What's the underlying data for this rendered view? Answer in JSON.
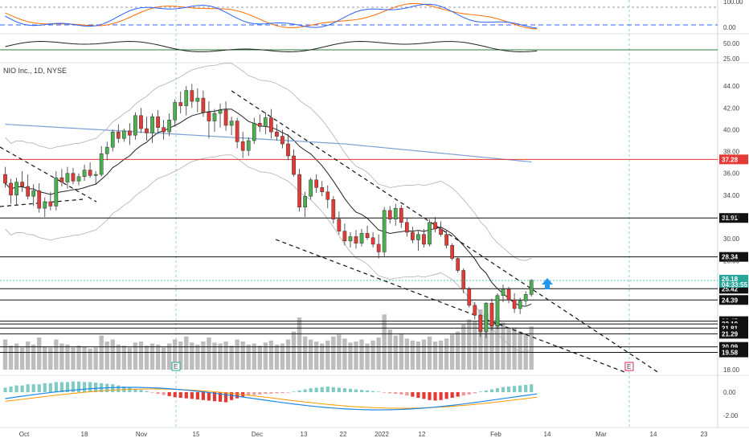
{
  "chart_data": {
    "type": "candlestick",
    "symbol": "NIO Inc., 1D, NYSE",
    "candles": [
      [
        35.9,
        36.6,
        34.7,
        35.1
      ],
      [
        35.1,
        35.5,
        33.2,
        34.0
      ],
      [
        34.0,
        35.6,
        33.1,
        35.2
      ],
      [
        35.2,
        36.2,
        34.3,
        34.8
      ],
      [
        34.8,
        35.9,
        33.6,
        33.9
      ],
      [
        33.9,
        35.0,
        33.0,
        34.4
      ],
      [
        34.4,
        35.1,
        32.4,
        32.8
      ],
      [
        32.8,
        33.8,
        32.0,
        33.4
      ],
      [
        33.4,
        34.3,
        32.6,
        33.0
      ],
      [
        33.0,
        36.2,
        32.6,
        35.6
      ],
      [
        35.6,
        36.4,
        34.8,
        35.2
      ],
      [
        35.2,
        36.6,
        34.6,
        36.0
      ],
      [
        36.0,
        36.5,
        35.0,
        35.3
      ],
      [
        35.3,
        36.0,
        34.9,
        35.7
      ],
      [
        35.7,
        36.8,
        35.3,
        36.3
      ],
      [
        36.3,
        37.0,
        35.6,
        35.8
      ],
      [
        35.8,
        36.2,
        35.0,
        35.9
      ],
      [
        35.9,
        38.5,
        35.7,
        37.8
      ],
      [
        37.8,
        38.9,
        37.2,
        38.4
      ],
      [
        38.4,
        40.0,
        38.0,
        39.8
      ],
      [
        39.8,
        40.5,
        38.8,
        39.2
      ],
      [
        39.2,
        40.1,
        38.9,
        39.9
      ],
      [
        39.9,
        40.6,
        38.6,
        39.5
      ],
      [
        39.5,
        41.6,
        39.1,
        41.3
      ],
      [
        41.3,
        42.0,
        39.7,
        40.1
      ],
      [
        40.1,
        41.2,
        39.0,
        39.7
      ],
      [
        39.7,
        41.5,
        38.8,
        41.2
      ],
      [
        41.2,
        41.8,
        39.6,
        40.2
      ],
      [
        40.2,
        40.9,
        39.1,
        39.8
      ],
      [
        39.8,
        41.5,
        39.4,
        40.9
      ],
      [
        40.9,
        42.8,
        40.3,
        42.5
      ],
      [
        42.5,
        43.5,
        41.5,
        42.2
      ],
      [
        42.2,
        44.0,
        41.3,
        43.6
      ],
      [
        43.6,
        44.2,
        42.0,
        42.6
      ],
      [
        42.6,
        43.8,
        41.6,
        42.9
      ],
      [
        42.9,
        43.6,
        41.2,
        41.6
      ],
      [
        41.6,
        42.6,
        39.2,
        40.8
      ],
      [
        40.8,
        41.9,
        39.8,
        41.5
      ],
      [
        41.5,
        42.4,
        40.2,
        41.8
      ],
      [
        41.8,
        42.6,
        39.9,
        40.4
      ],
      [
        40.4,
        41.2,
        39.5,
        40.8
      ],
      [
        40.8,
        41.1,
        38.3,
        38.9
      ],
      [
        38.9,
        39.8,
        37.4,
        38.1
      ],
      [
        38.1,
        39.3,
        37.6,
        39.0
      ],
      [
        39.0,
        41.1,
        38.7,
        40.6
      ],
      [
        40.6,
        41.4,
        39.8,
        40.3
      ],
      [
        40.3,
        41.6,
        39.6,
        41.1
      ],
      [
        41.1,
        41.9,
        39.2,
        39.8
      ],
      [
        39.8,
        40.5,
        39.0,
        39.4
      ],
      [
        39.4,
        40.0,
        38.3,
        38.7
      ],
      [
        38.7,
        39.6,
        37.2,
        37.6
      ],
      [
        37.6,
        38.2,
        35.7,
        35.9
      ],
      [
        35.9,
        36.4,
        32.5,
        32.9
      ],
      [
        32.9,
        34.3,
        32.0,
        33.9
      ],
      [
        33.9,
        35.6,
        33.6,
        35.4
      ],
      [
        35.4,
        35.9,
        34.2,
        34.7
      ],
      [
        34.7,
        35.3,
        33.9,
        34.3
      ],
      [
        34.3,
        34.9,
        32.8,
        33.6
      ],
      [
        33.6,
        33.9,
        31.4,
        31.8
      ],
      [
        31.8,
        32.5,
        30.4,
        30.7
      ],
      [
        30.7,
        31.4,
        29.4,
        29.8
      ],
      [
        29.8,
        30.6,
        29.2,
        30.2
      ],
      [
        30.2,
        30.8,
        29.1,
        29.6
      ],
      [
        29.6,
        30.9,
        29.3,
        30.5
      ],
      [
        30.5,
        31.2,
        29.9,
        30.1
      ],
      [
        30.1,
        30.6,
        29.2,
        29.5
      ],
      [
        29.5,
        30.4,
        28.2,
        28.8
      ],
      [
        28.8,
        32.9,
        28.4,
        32.6
      ],
      [
        32.6,
        33.0,
        31.4,
        31.8
      ],
      [
        31.8,
        33.2,
        31.2,
        32.8
      ],
      [
        32.8,
        33.1,
        31.0,
        31.5
      ],
      [
        31.5,
        31.9,
        30.2,
        30.6
      ],
      [
        30.6,
        31.1,
        29.6,
        29.9
      ],
      [
        29.9,
        30.7,
        28.9,
        30.4
      ],
      [
        30.4,
        30.9,
        29.2,
        29.5
      ],
      [
        29.5,
        31.8,
        29.3,
        31.5
      ],
      [
        31.5,
        32.0,
        30.6,
        30.9
      ],
      [
        30.9,
        31.6,
        30.2,
        30.4
      ],
      [
        30.4,
        30.8,
        29.1,
        29.4
      ],
      [
        29.4,
        29.6,
        28.0,
        28.2
      ],
      [
        28.2,
        28.3,
        26.9,
        27.1
      ],
      [
        27.1,
        27.3,
        25.0,
        25.4
      ],
      [
        25.4,
        25.6,
        23.7,
        23.9
      ],
      [
        23.9,
        24.2,
        22.6,
        23.0
      ],
      [
        23.0,
        23.1,
        21.0,
        21.5
      ],
      [
        21.5,
        24.2,
        20.9,
        24.1
      ],
      [
        24.1,
        24.5,
        21.6,
        22.0
      ],
      [
        22.0,
        25.0,
        21.7,
        24.8
      ],
      [
        24.8,
        25.8,
        24.2,
        25.4
      ],
      [
        25.4,
        25.6,
        24.1,
        24.4
      ],
      [
        24.4,
        25.0,
        23.2,
        23.6
      ],
      [
        23.6,
        24.6,
        23.1,
        24.3
      ],
      [
        24.3,
        25.2,
        23.9,
        24.9
      ],
      [
        24.9,
        26.3,
        24.7,
        26.2
      ]
    ],
    "volume": [
      30,
      24,
      26,
      22,
      28,
      25,
      32,
      23,
      22,
      30,
      26,
      25,
      22,
      24,
      23,
      21,
      22,
      34,
      28,
      30,
      25,
      24,
      22,
      27,
      28,
      24,
      26,
      25,
      22,
      26,
      30,
      28,
      33,
      27,
      25,
      28,
      32,
      27,
      26,
      28,
      24,
      30,
      28,
      25,
      26,
      24,
      27,
      29,
      25,
      26,
      30,
      38,
      52,
      33,
      30,
      28,
      26,
      29,
      33,
      35,
      31,
      27,
      28,
      30,
      26,
      29,
      32,
      55,
      40,
      34,
      36,
      31,
      29,
      28,
      30,
      33,
      28,
      29,
      31,
      35,
      38,
      45,
      50,
      48,
      60,
      56,
      44,
      52,
      47,
      41,
      42,
      38,
      36,
      43
    ],
    "y_range": [
      18,
      46
    ],
    "price_ticks": [
      "44.00",
      "42.00",
      "40.00",
      "38.00",
      "36.00",
      "34.00",
      "32.00",
      "30.00",
      "28.00",
      "18.00"
    ],
    "current_price": {
      "value": "26.18",
      "timer": "04:33:55"
    },
    "levels": [
      {
        "value": "37.28",
        "color": "#e53935"
      },
      {
        "value": "31.91",
        "color": "#111111"
      },
      {
        "value": "28.34",
        "color": "#111111"
      },
      {
        "value": "25.42",
        "color": "#111111"
      },
      {
        "value": "24.39",
        "color": "#111111"
      },
      {
        "value": "22.45",
        "color": "#111111"
      },
      {
        "value": "22.19",
        "color": "#111111"
      },
      {
        "value": "21.81",
        "color": "#111111"
      },
      {
        "value": "21.29",
        "color": "#111111"
      },
      {
        "value": "20.09",
        "color": "#111111"
      },
      {
        "value": "19.58",
        "color": "#111111"
      }
    ],
    "time_labels": [
      "Oct",
      "18",
      "Nov",
      "15",
      "Dec",
      "13",
      "22",
      "2022",
      "12",
      "Feb",
      "14",
      "Mar",
      "14",
      "23"
    ],
    "stoch_ticks": [
      "100.00",
      "0.00"
    ],
    "rsi_ticks": [
      "50.00",
      "25.00"
    ],
    "macd_ticks": [
      "0.00",
      "-2.00"
    ],
    "events": [
      "E",
      "E"
    ],
    "macd_hist": [
      0.4,
      0.5,
      0.6,
      0.6,
      0.7,
      0.7,
      0.7,
      0.8,
      0.8,
      0.9,
      0.9,
      0.9,
      0.95,
      0.95,
      0.9,
      0.9,
      0.85,
      0.8,
      0.75,
      0.7,
      0.6,
      0.5,
      0.4,
      0.3,
      0.2,
      0.1,
      -0.05,
      -0.15,
      -0.25,
      -0.35,
      -0.45,
      -0.5,
      -0.55,
      -0.6,
      -0.65,
      -0.7,
      -0.75,
      -0.8,
      -0.85,
      -0.9,
      -0.7,
      -0.55,
      -0.4,
      -0.3,
      -0.25,
      -0.2,
      -0.15,
      -0.12,
      -0.1,
      -0.08,
      -0.05,
      0.05,
      0.15,
      0.25,
      0.35,
      0.4,
      0.45,
      0.5,
      0.45,
      0.4,
      0.35,
      0.3,
      0.25,
      0.2,
      0.15,
      0.1,
      0.05,
      -0.05,
      -0.1,
      -0.15,
      -0.2,
      -0.3,
      -0.4,
      -0.5,
      -0.6,
      -0.7,
      -0.75,
      -0.7,
      -0.6,
      -0.5,
      -0.4,
      -0.3,
      -0.2,
      -0.1,
      0.05,
      0.15,
      0.25,
      0.35,
      0.45,
      0.5,
      0.55,
      0.6,
      0.65,
      0.7
    ]
  }
}
